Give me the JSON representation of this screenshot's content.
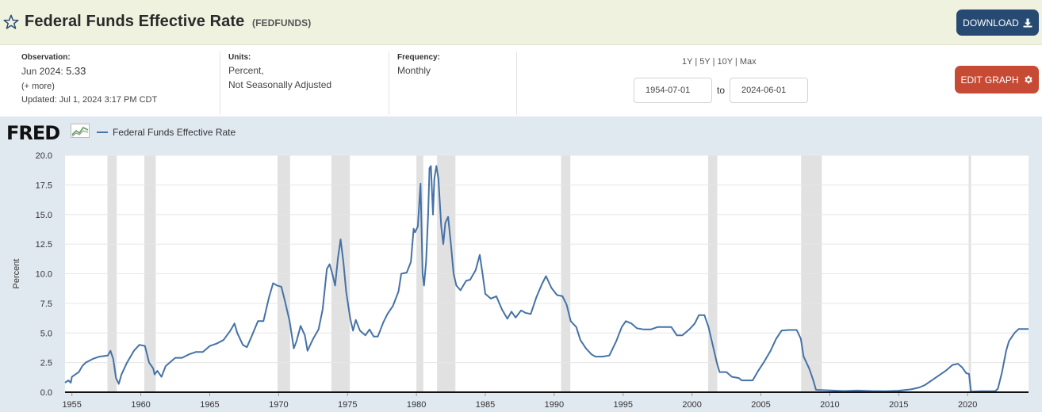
{
  "header": {
    "title": "Federal Funds Effective Rate",
    "series_id": "(FEDFUNDS)",
    "download_label": "DOWNLOAD"
  },
  "meta": {
    "observation_label": "Observation:",
    "observation_date": "Jun 2024:",
    "observation_value": "5.33",
    "more_link": "(+ more)",
    "updated": "Updated: Jul 1, 2024 3:17 PM CDT",
    "units_label": "Units:",
    "units_line1": "Percent,",
    "units_line2": "Not Seasonally Adjusted",
    "frequency_label": "Frequency:",
    "frequency_value": "Monthly"
  },
  "range": {
    "links": [
      "1Y",
      "5Y",
      "10Y",
      "Max"
    ],
    "start": "1954-07-01",
    "to_label": "to",
    "end": "2024-06-01",
    "edit_label": "EDIT GRAPH"
  },
  "colors": {
    "line": "#4572a7",
    "recession": "#e1e1e1",
    "download": "#274a72",
    "edit": "#c64a34"
  },
  "icons": {
    "star": "star-icon",
    "download": "download-icon",
    "gear": "gear-icon",
    "logo": "fred-chart-icon"
  },
  "chart_data": {
    "type": "line",
    "title": "",
    "logo_text": "FRED",
    "legend": [
      "Federal Funds Effective Rate"
    ],
    "ylabel": "Percent",
    "xlabel": "",
    "xlim": [
      1954.5,
      2024.42
    ],
    "ylim": [
      0,
      20
    ],
    "yticks": [
      "0.0",
      "2.5",
      "5.0",
      "7.5",
      "10.0",
      "12.5",
      "15.0",
      "17.5",
      "20.0"
    ],
    "xticks": [
      "1955",
      "1960",
      "1965",
      "1970",
      "1975",
      "1980",
      "1985",
      "1990",
      "1995",
      "2000",
      "2005",
      "2010",
      "2015",
      "2020"
    ],
    "grid": true,
    "recessions": [
      [
        1957.58,
        1958.25
      ],
      [
        1960.25,
        1961.08
      ],
      [
        1969.92,
        1970.83
      ],
      [
        1973.83,
        1975.17
      ],
      [
        1980.0,
        1980.5
      ],
      [
        1981.5,
        1982.83
      ],
      [
        1990.5,
        1991.17
      ],
      [
        2001.17,
        2001.83
      ],
      [
        2007.92,
        2009.42
      ],
      [
        2020.08,
        2020.25
      ]
    ],
    "series": [
      {
        "name": "Federal Funds Effective Rate",
        "points": [
          [
            1954.5,
            0.8
          ],
          [
            1954.75,
            1.0
          ],
          [
            1954.92,
            0.8
          ],
          [
            1955.0,
            1.3
          ],
          [
            1955.5,
            1.7
          ],
          [
            1955.75,
            2.2
          ],
          [
            1956.0,
            2.5
          ],
          [
            1956.5,
            2.8
          ],
          [
            1957.0,
            3.0
          ],
          [
            1957.6,
            3.1
          ],
          [
            1957.8,
            3.5
          ],
          [
            1958.0,
            2.8
          ],
          [
            1958.2,
            1.2
          ],
          [
            1958.4,
            0.7
          ],
          [
            1958.6,
            1.5
          ],
          [
            1959.0,
            2.5
          ],
          [
            1959.5,
            3.5
          ],
          [
            1959.9,
            4.0
          ],
          [
            1960.3,
            3.9
          ],
          [
            1960.6,
            2.5
          ],
          [
            1960.9,
            2.0
          ],
          [
            1961.0,
            1.5
          ],
          [
            1961.2,
            1.8
          ],
          [
            1961.5,
            1.3
          ],
          [
            1961.8,
            2.2
          ],
          [
            1962.0,
            2.4
          ],
          [
            1962.5,
            2.9
          ],
          [
            1963.0,
            2.9
          ],
          [
            1963.5,
            3.2
          ],
          [
            1964.0,
            3.4
          ],
          [
            1964.5,
            3.4
          ],
          [
            1965.0,
            3.9
          ],
          [
            1965.5,
            4.1
          ],
          [
            1966.0,
            4.4
          ],
          [
            1966.5,
            5.2
          ],
          [
            1966.8,
            5.8
          ],
          [
            1967.0,
            5.0
          ],
          [
            1967.4,
            4.0
          ],
          [
            1967.7,
            3.8
          ],
          [
            1968.0,
            4.6
          ],
          [
            1968.5,
            6.0
          ],
          [
            1968.9,
            6.0
          ],
          [
            1969.3,
            8.0
          ],
          [
            1969.6,
            9.2
          ],
          [
            1969.9,
            9.0
          ],
          [
            1970.2,
            8.9
          ],
          [
            1970.5,
            7.5
          ],
          [
            1970.8,
            6.0
          ],
          [
            1971.1,
            3.7
          ],
          [
            1971.3,
            4.3
          ],
          [
            1971.6,
            5.6
          ],
          [
            1971.9,
            4.8
          ],
          [
            1972.1,
            3.5
          ],
          [
            1972.5,
            4.5
          ],
          [
            1972.9,
            5.3
          ],
          [
            1973.2,
            7.0
          ],
          [
            1973.5,
            10.4
          ],
          [
            1973.7,
            10.8
          ],
          [
            1973.9,
            10.0
          ],
          [
            1974.1,
            9.0
          ],
          [
            1974.3,
            11.3
          ],
          [
            1974.5,
            12.9
          ],
          [
            1974.7,
            11.0
          ],
          [
            1974.9,
            8.5
          ],
          [
            1975.2,
            6.2
          ],
          [
            1975.4,
            5.2
          ],
          [
            1975.6,
            6.1
          ],
          [
            1975.9,
            5.2
          ],
          [
            1976.3,
            4.8
          ],
          [
            1976.6,
            5.3
          ],
          [
            1976.9,
            4.7
          ],
          [
            1977.2,
            4.7
          ],
          [
            1977.6,
            5.9
          ],
          [
            1977.9,
            6.6
          ],
          [
            1978.3,
            7.3
          ],
          [
            1978.7,
            8.5
          ],
          [
            1978.9,
            10.0
          ],
          [
            1979.3,
            10.1
          ],
          [
            1979.6,
            11.0
          ],
          [
            1979.8,
            13.8
          ],
          [
            1979.9,
            13.5
          ],
          [
            1980.1,
            14.0
          ],
          [
            1980.3,
            17.6
          ],
          [
            1980.45,
            10.0
          ],
          [
            1980.55,
            9.0
          ],
          [
            1980.7,
            11.0
          ],
          [
            1980.85,
            15.0
          ],
          [
            1980.95,
            18.9
          ],
          [
            1981.05,
            19.1
          ],
          [
            1981.2,
            15.0
          ],
          [
            1981.3,
            18.0
          ],
          [
            1981.45,
            19.1
          ],
          [
            1981.6,
            18.0
          ],
          [
            1981.8,
            14.0
          ],
          [
            1981.95,
            12.5
          ],
          [
            1982.1,
            14.3
          ],
          [
            1982.3,
            14.8
          ],
          [
            1982.5,
            12.5
          ],
          [
            1982.7,
            10.0
          ],
          [
            1982.9,
            9.0
          ],
          [
            1983.2,
            8.6
          ],
          [
            1983.6,
            9.4
          ],
          [
            1983.9,
            9.5
          ],
          [
            1984.3,
            10.3
          ],
          [
            1984.6,
            11.6
          ],
          [
            1984.8,
            10.0
          ],
          [
            1985.0,
            8.3
          ],
          [
            1985.4,
            7.9
          ],
          [
            1985.8,
            8.1
          ],
          [
            1986.2,
            7.0
          ],
          [
            1986.6,
            6.2
          ],
          [
            1986.9,
            6.8
          ],
          [
            1987.2,
            6.3
          ],
          [
            1987.6,
            6.9
          ],
          [
            1987.9,
            6.7
          ],
          [
            1988.3,
            6.6
          ],
          [
            1988.7,
            8.0
          ],
          [
            1989.1,
            9.1
          ],
          [
            1989.4,
            9.8
          ],
          [
            1989.8,
            8.8
          ],
          [
            1990.2,
            8.2
          ],
          [
            1990.6,
            8.1
          ],
          [
            1990.9,
            7.4
          ],
          [
            1991.2,
            6.0
          ],
          [
            1991.6,
            5.5
          ],
          [
            1991.9,
            4.4
          ],
          [
            1992.3,
            3.7
          ],
          [
            1992.7,
            3.2
          ],
          [
            1993.0,
            3.0
          ],
          [
            1993.5,
            3.0
          ],
          [
            1994.0,
            3.1
          ],
          [
            1994.5,
            4.3
          ],
          [
            1994.9,
            5.5
          ],
          [
            1995.2,
            6.0
          ],
          [
            1995.6,
            5.8
          ],
          [
            1996.0,
            5.4
          ],
          [
            1996.5,
            5.3
          ],
          [
            1997.0,
            5.3
          ],
          [
            1997.5,
            5.5
          ],
          [
            1998.0,
            5.5
          ],
          [
            1998.5,
            5.5
          ],
          [
            1998.9,
            4.8
          ],
          [
            1999.3,
            4.8
          ],
          [
            1999.8,
            5.3
          ],
          [
            2000.2,
            5.8
          ],
          [
            2000.5,
            6.5
          ],
          [
            2000.9,
            6.5
          ],
          [
            2001.2,
            5.5
          ],
          [
            2001.5,
            4.0
          ],
          [
            2001.8,
            2.5
          ],
          [
            2002.0,
            1.7
          ],
          [
            2002.5,
            1.7
          ],
          [
            2002.9,
            1.3
          ],
          [
            2003.4,
            1.2
          ],
          [
            2003.6,
            1.0
          ],
          [
            2004.4,
            1.0
          ],
          [
            2004.8,
            1.8
          ],
          [
            2005.2,
            2.5
          ],
          [
            2005.7,
            3.5
          ],
          [
            2006.1,
            4.5
          ],
          [
            2006.5,
            5.2
          ],
          [
            2007.0,
            5.25
          ],
          [
            2007.6,
            5.25
          ],
          [
            2007.9,
            4.5
          ],
          [
            2008.1,
            3.0
          ],
          [
            2008.5,
            2.0
          ],
          [
            2008.8,
            1.0
          ],
          [
            2009.0,
            0.2
          ],
          [
            2010.0,
            0.15
          ],
          [
            2011.0,
            0.1
          ],
          [
            2012.0,
            0.14
          ],
          [
            2013.0,
            0.1
          ],
          [
            2014.0,
            0.09
          ],
          [
            2015.0,
            0.13
          ],
          [
            2015.9,
            0.24
          ],
          [
            2016.5,
            0.4
          ],
          [
            2016.9,
            0.6
          ],
          [
            2017.4,
            1.0
          ],
          [
            2017.9,
            1.4
          ],
          [
            2018.4,
            1.8
          ],
          [
            2018.9,
            2.3
          ],
          [
            2019.3,
            2.4
          ],
          [
            2019.6,
            2.1
          ],
          [
            2019.9,
            1.6
          ],
          [
            2020.1,
            1.55
          ],
          [
            2020.25,
            0.05
          ],
          [
            2021.0,
            0.08
          ],
          [
            2022.0,
            0.08
          ],
          [
            2022.2,
            0.3
          ],
          [
            2022.5,
            1.7
          ],
          [
            2022.8,
            3.5
          ],
          [
            2023.0,
            4.3
          ],
          [
            2023.4,
            5.0
          ],
          [
            2023.7,
            5.33
          ],
          [
            2024.42,
            5.33
          ]
        ]
      }
    ]
  }
}
